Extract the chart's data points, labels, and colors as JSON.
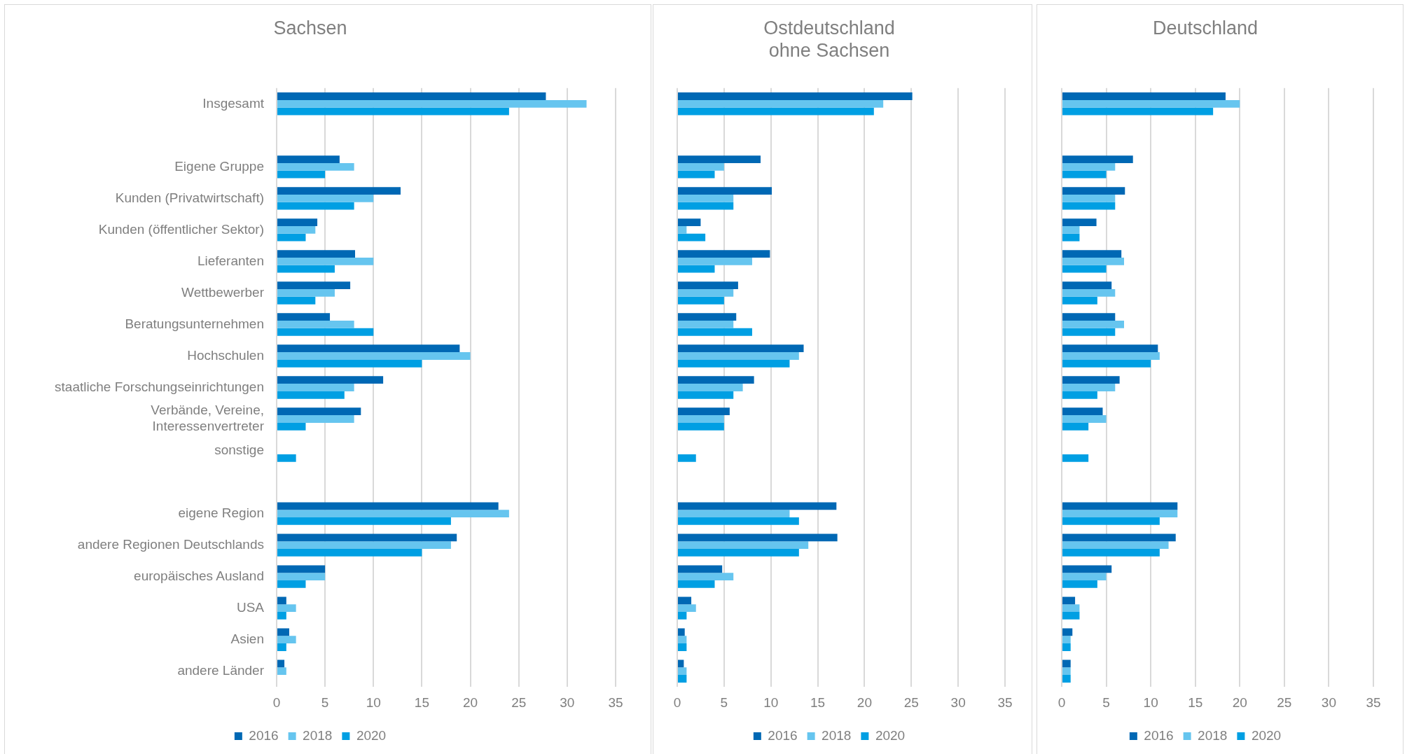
{
  "chart_data": [
    {
      "type": "bar",
      "orientation": "horizontal",
      "title": "Sachsen",
      "categories": [
        "Insgesamt",
        null,
        "Eigene Gruppe",
        "Kunden (Privatwirtschaft)",
        "Kunden (öffentlicher Sektor)",
        "Lieferanten",
        "Wettbewerber",
        "Beratungsunternehmen",
        "Hochschulen",
        "staatliche Forschungseinrichtungen",
        "Verbände, Vereine,\nInteressenvertreter",
        "sonstige",
        null,
        "eigene Region",
        "andere Regionen Deutschlands",
        "europäisches Ausland",
        "USA",
        "Asien",
        "andere Länder"
      ],
      "series": [
        {
          "name": "2016",
          "color": "#0068b4",
          "values": [
            27.8,
            null,
            6.5,
            12.8,
            4.2,
            8.1,
            7.6,
            5.5,
            18.9,
            11,
            8.7,
            null,
            null,
            22.9,
            18.6,
            5,
            1,
            1.3,
            0.8
          ]
        },
        {
          "name": "2018",
          "color": "#66c5ef",
          "values": [
            32,
            null,
            8,
            10,
            4,
            10,
            6,
            8,
            20,
            8,
            8,
            null,
            null,
            24,
            18,
            5,
            2,
            2,
            1
          ]
        },
        {
          "name": "2020",
          "color": "#009fe3",
          "values": [
            24,
            null,
            5,
            8,
            3,
            6,
            4,
            10,
            15,
            7,
            3,
            2,
            null,
            18,
            15,
            3,
            1,
            1,
            null
          ]
        }
      ],
      "xlim": [
        0,
        35
      ],
      "xticks": [
        0,
        5,
        10,
        15,
        20,
        25,
        30,
        35
      ],
      "grid": "x",
      "legend": "bottom"
    },
    {
      "type": "bar",
      "orientation": "horizontal",
      "title": "Ostdeutschland\nohne Sachsen",
      "categories": [
        null,
        null,
        null,
        null,
        null,
        null,
        null,
        null,
        null,
        null,
        null,
        null,
        null,
        null,
        null,
        null,
        null,
        null,
        null
      ],
      "series": [
        {
          "name": "2016",
          "color": "#0068b4",
          "values": [
            25.1,
            null,
            8.9,
            10.1,
            2.5,
            9.9,
            6.5,
            6.3,
            13.5,
            8.2,
            5.6,
            null,
            null,
            17,
            17.1,
            4.8,
            1.5,
            0.8,
            0.7
          ]
        },
        {
          "name": "2018",
          "color": "#66c5ef",
          "values": [
            22,
            null,
            5,
            6,
            1,
            8,
            6,
            6,
            13,
            7,
            5,
            null,
            null,
            12,
            14,
            6,
            2,
            1,
            1
          ]
        },
        {
          "name": "2020",
          "color": "#009fe3",
          "values": [
            21,
            null,
            4,
            6,
            3,
            4,
            5,
            8,
            12,
            6,
            5,
            2,
            null,
            13,
            13,
            4,
            1,
            1,
            1
          ]
        }
      ],
      "xlim": [
        0,
        35
      ],
      "xticks": [
        0,
        5,
        10,
        15,
        20,
        25,
        30,
        35
      ],
      "grid": "x",
      "legend": "bottom",
      "tick_labels": "x"
    },
    {
      "type": "bar",
      "orientation": "horizontal",
      "title": "Deutschland",
      "categories": [
        null,
        null,
        null,
        null,
        null,
        null,
        null,
        null,
        null,
        null,
        null,
        null,
        null,
        null,
        null,
        null,
        null,
        null,
        null
      ],
      "series": [
        {
          "name": "2016",
          "color": "#0068b4",
          "values": [
            18.4,
            null,
            8,
            7.1,
            3.9,
            6.7,
            5.6,
            6,
            10.8,
            6.5,
            4.6,
            null,
            null,
            13,
            12.8,
            5.6,
            1.5,
            1.2,
            1
          ]
        },
        {
          "name": "2018",
          "color": "#66c5ef",
          "values": [
            20,
            null,
            6,
            6,
            2,
            7,
            6,
            7,
            11,
            6,
            5,
            null,
            null,
            13,
            12,
            5,
            2,
            1,
            1
          ]
        },
        {
          "name": "2020",
          "color": "#009fe3",
          "values": [
            17,
            null,
            5,
            6,
            2,
            5,
            4,
            6,
            10,
            4,
            3,
            3,
            null,
            11,
            11,
            4,
            2,
            1,
            1
          ]
        }
      ],
      "xlim": [
        0,
        35
      ],
      "xticks": [
        0,
        5,
        10,
        15,
        20,
        25,
        30,
        35
      ],
      "grid": "x",
      "legend": "bottom",
      "tick_labels": "x"
    }
  ]
}
